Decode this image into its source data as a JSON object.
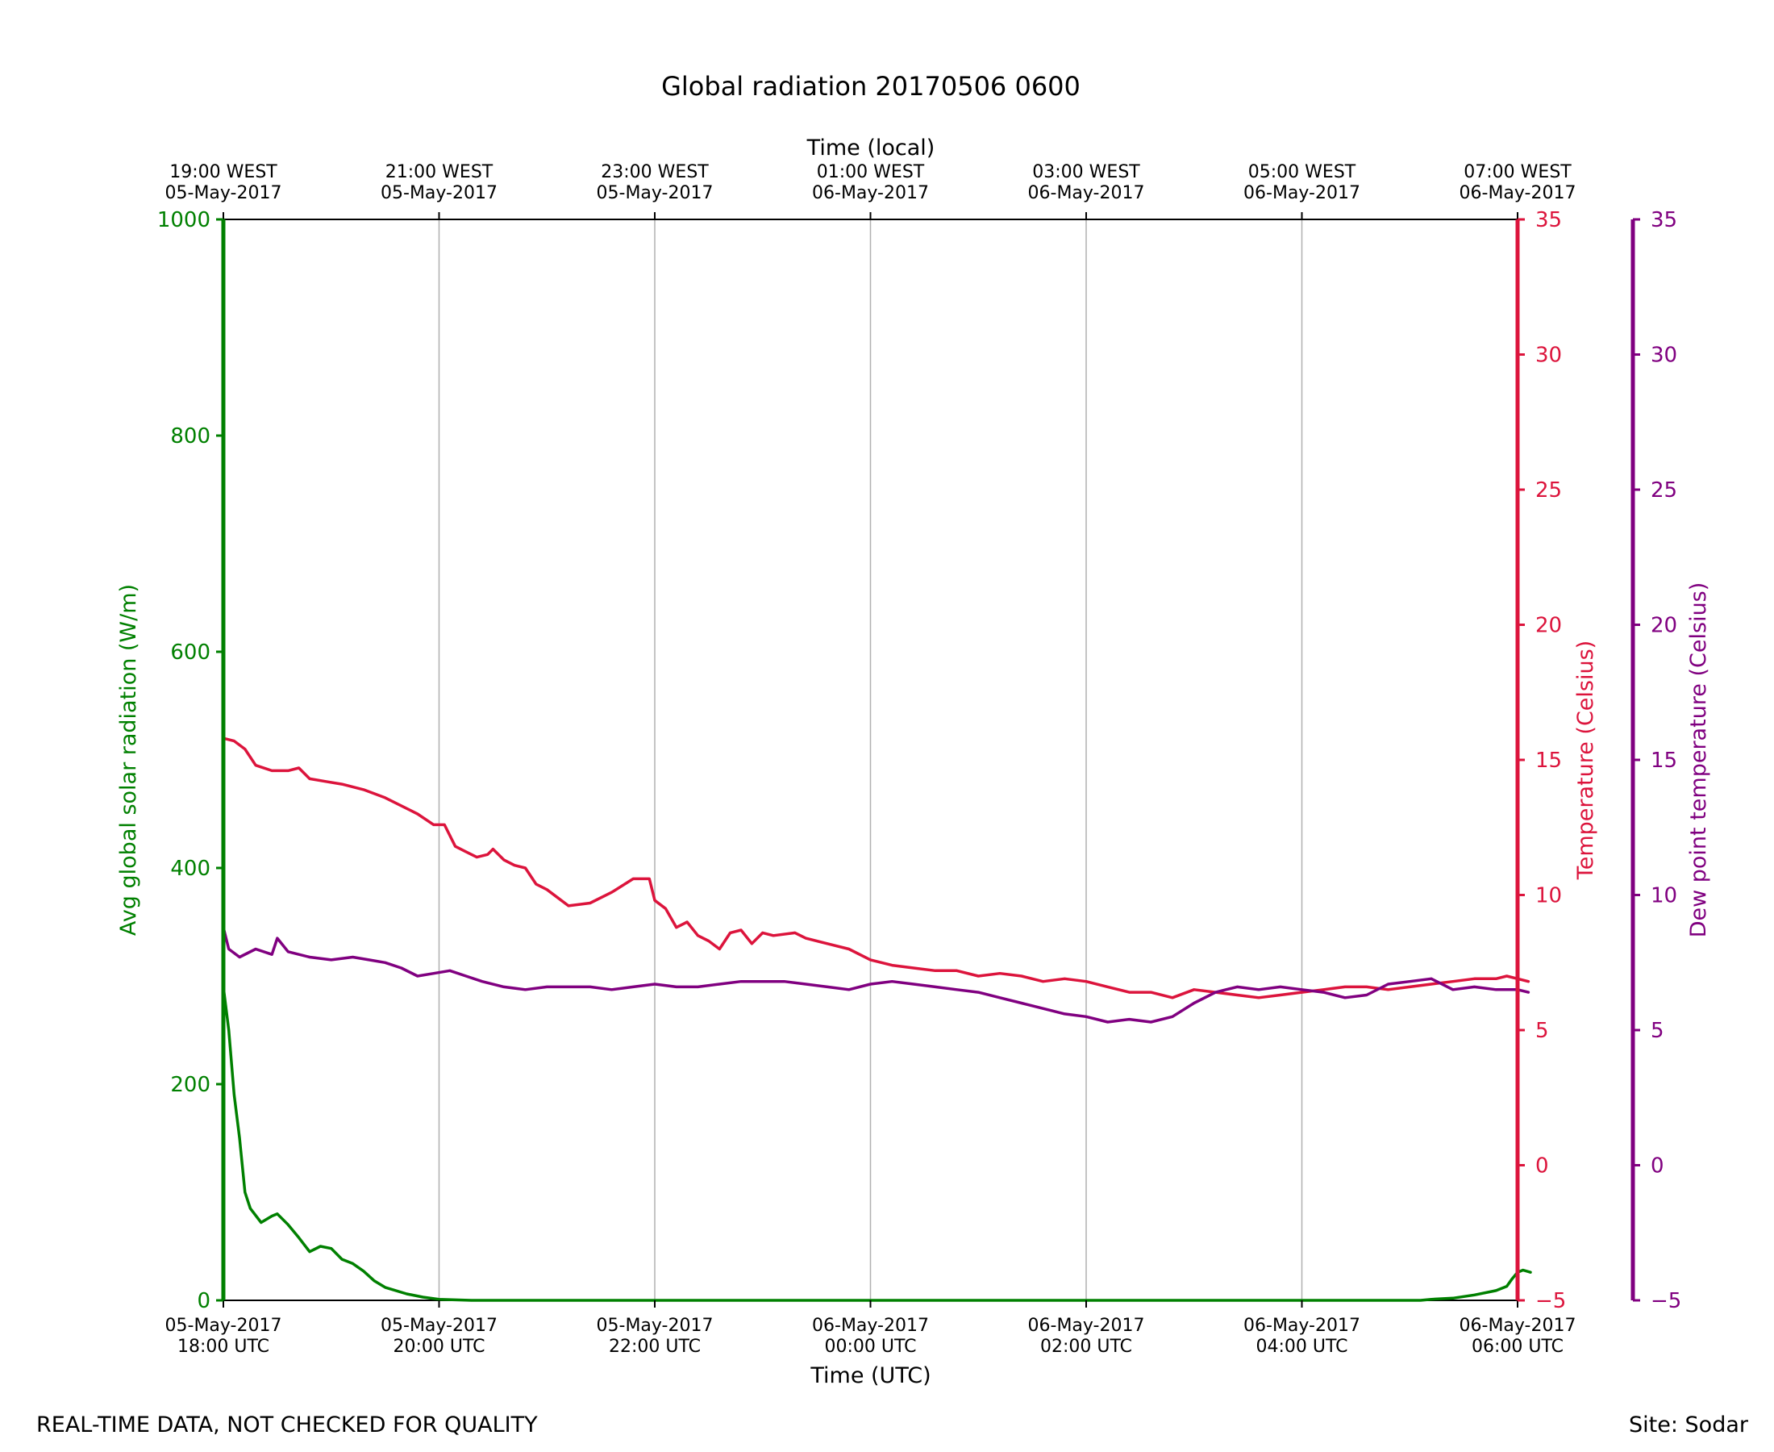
{
  "chart_data": {
    "type": "line",
    "title": "Global radiation 20170506 0600",
    "x_top_label": "Time (local)",
    "x_bottom_label": "Time (UTC)",
    "x_range_hours": [
      0,
      12
    ],
    "x_ticks_hours": [
      0,
      2,
      4,
      6,
      8,
      10,
      12
    ],
    "x_tick_labels_utc": [
      [
        "05-May-2017",
        "18:00 UTC"
      ],
      [
        "05-May-2017",
        "20:00 UTC"
      ],
      [
        "05-May-2017",
        "22:00 UTC"
      ],
      [
        "06-May-2017",
        "00:00 UTC"
      ],
      [
        "06-May-2017",
        "02:00 UTC"
      ],
      [
        "06-May-2017",
        "04:00 UTC"
      ],
      [
        "06-May-2017",
        "06:00 UTC"
      ]
    ],
    "x_tick_labels_local": [
      [
        "19:00 WEST",
        "05-May-2017"
      ],
      [
        "21:00 WEST",
        "05-May-2017"
      ],
      [
        "23:00 WEST",
        "05-May-2017"
      ],
      [
        "01:00 WEST",
        "06-May-2017"
      ],
      [
        "03:00 WEST",
        "06-May-2017"
      ],
      [
        "05:00 WEST",
        "06-May-2017"
      ],
      [
        "07:00 WEST",
        "06-May-2017"
      ]
    ],
    "grid": "vertical",
    "axes": {
      "radiation": {
        "label": "Avg global solar radiation (W/m)",
        "range": [
          0,
          1000
        ],
        "ticks": [
          0,
          200,
          400,
          600,
          800,
          1000
        ],
        "color": "#008000",
        "side": "left"
      },
      "temperature": {
        "label": "Temperature (Celsius)",
        "range": [
          -5,
          35
        ],
        "ticks": [
          -5,
          0,
          5,
          10,
          15,
          20,
          25,
          30,
          35
        ],
        "color": "#dc143c",
        "side": "right"
      },
      "dewpoint": {
        "label": "Dew point temperature (Celsius)",
        "range": [
          -5,
          35
        ],
        "ticks": [
          -5,
          0,
          5,
          10,
          15,
          20,
          25,
          30,
          35
        ],
        "color": "#800080",
        "side": "far-right"
      }
    },
    "series": [
      {
        "name": "Avg global solar radiation",
        "axis": "radiation",
        "color": "#008000",
        "points": [
          [
            0,
            1000
          ],
          [
            0,
            290
          ],
          [
            0.05,
            250
          ],
          [
            0.1,
            190
          ],
          [
            0.15,
            150
          ],
          [
            0.2,
            100
          ],
          [
            0.25,
            85
          ],
          [
            0.35,
            72
          ],
          [
            0.45,
            78
          ],
          [
            0.5,
            80
          ],
          [
            0.6,
            70
          ],
          [
            0.7,
            58
          ],
          [
            0.8,
            45
          ],
          [
            0.9,
            50
          ],
          [
            1.0,
            48
          ],
          [
            1.1,
            38
          ],
          [
            1.2,
            34
          ],
          [
            1.3,
            27
          ],
          [
            1.4,
            18
          ],
          [
            1.5,
            12
          ],
          [
            1.7,
            6
          ],
          [
            1.85,
            3
          ],
          [
            2.0,
            1
          ],
          [
            2.3,
            0
          ],
          [
            11.1,
            0
          ],
          [
            11.2,
            1
          ],
          [
            11.4,
            2
          ],
          [
            11.6,
            5
          ],
          [
            11.8,
            9
          ],
          [
            11.9,
            13
          ],
          [
            11.95,
            20
          ],
          [
            12.0,
            26
          ],
          [
            12.05,
            28
          ],
          [
            12.12,
            26
          ]
        ]
      },
      {
        "name": "Temperature",
        "axis": "temperature",
        "color": "#dc143c",
        "points": [
          [
            0,
            15.8
          ],
          [
            0.1,
            15.7
          ],
          [
            0.2,
            15.4
          ],
          [
            0.3,
            14.8
          ],
          [
            0.45,
            14.6
          ],
          [
            0.6,
            14.6
          ],
          [
            0.7,
            14.7
          ],
          [
            0.8,
            14.3
          ],
          [
            0.95,
            14.2
          ],
          [
            1.1,
            14.1
          ],
          [
            1.3,
            13.9
          ],
          [
            1.5,
            13.6
          ],
          [
            1.65,
            13.3
          ],
          [
            1.8,
            13.0
          ],
          [
            1.95,
            12.6
          ],
          [
            2.05,
            12.6
          ],
          [
            2.15,
            11.8
          ],
          [
            2.25,
            11.6
          ],
          [
            2.35,
            11.4
          ],
          [
            2.45,
            11.5
          ],
          [
            2.5,
            11.7
          ],
          [
            2.6,
            11.3
          ],
          [
            2.7,
            11.1
          ],
          [
            2.8,
            11.0
          ],
          [
            2.9,
            10.4
          ],
          [
            3.0,
            10.2
          ],
          [
            3.1,
            9.9
          ],
          [
            3.2,
            9.6
          ],
          [
            3.4,
            9.7
          ],
          [
            3.6,
            10.1
          ],
          [
            3.8,
            10.6
          ],
          [
            3.95,
            10.6
          ],
          [
            4.0,
            9.8
          ],
          [
            4.1,
            9.5
          ],
          [
            4.2,
            8.8
          ],
          [
            4.3,
            9.0
          ],
          [
            4.4,
            8.5
          ],
          [
            4.5,
            8.3
          ],
          [
            4.6,
            8.0
          ],
          [
            4.7,
            8.6
          ],
          [
            4.8,
            8.7
          ],
          [
            4.9,
            8.2
          ],
          [
            5.0,
            8.6
          ],
          [
            5.1,
            8.5
          ],
          [
            5.3,
            8.6
          ],
          [
            5.4,
            8.4
          ],
          [
            5.6,
            8.2
          ],
          [
            5.8,
            8.0
          ],
          [
            6.0,
            7.6
          ],
          [
            6.2,
            7.4
          ],
          [
            6.4,
            7.3
          ],
          [
            6.6,
            7.2
          ],
          [
            6.8,
            7.2
          ],
          [
            7.0,
            7.0
          ],
          [
            7.2,
            7.1
          ],
          [
            7.4,
            7.0
          ],
          [
            7.6,
            6.8
          ],
          [
            7.8,
            6.9
          ],
          [
            8.0,
            6.8
          ],
          [
            8.2,
            6.6
          ],
          [
            8.4,
            6.4
          ],
          [
            8.6,
            6.4
          ],
          [
            8.8,
            6.2
          ],
          [
            9.0,
            6.5
          ],
          [
            9.2,
            6.4
          ],
          [
            9.4,
            6.3
          ],
          [
            9.6,
            6.2
          ],
          [
            9.8,
            6.3
          ],
          [
            10.0,
            6.4
          ],
          [
            10.2,
            6.5
          ],
          [
            10.4,
            6.6
          ],
          [
            10.6,
            6.6
          ],
          [
            10.8,
            6.5
          ],
          [
            11.0,
            6.6
          ],
          [
            11.2,
            6.7
          ],
          [
            11.4,
            6.8
          ],
          [
            11.6,
            6.9
          ],
          [
            11.8,
            6.9
          ],
          [
            11.9,
            7.0
          ],
          [
            12.0,
            6.9
          ],
          [
            12.1,
            6.8
          ]
        ]
      },
      {
        "name": "Dew point temperature",
        "axis": "dewpoint",
        "color": "#800080",
        "points": [
          [
            0,
            8.8
          ],
          [
            0.05,
            8.0
          ],
          [
            0.15,
            7.7
          ],
          [
            0.3,
            8.0
          ],
          [
            0.45,
            7.8
          ],
          [
            0.5,
            8.4
          ],
          [
            0.6,
            7.9
          ],
          [
            0.8,
            7.7
          ],
          [
            1.0,
            7.6
          ],
          [
            1.2,
            7.7
          ],
          [
            1.35,
            7.6
          ],
          [
            1.5,
            7.5
          ],
          [
            1.65,
            7.3
          ],
          [
            1.8,
            7.0
          ],
          [
            1.95,
            7.1
          ],
          [
            2.1,
            7.2
          ],
          [
            2.25,
            7.0
          ],
          [
            2.4,
            6.8
          ],
          [
            2.6,
            6.6
          ],
          [
            2.8,
            6.5
          ],
          [
            3.0,
            6.6
          ],
          [
            3.2,
            6.6
          ],
          [
            3.4,
            6.6
          ],
          [
            3.6,
            6.5
          ],
          [
            3.8,
            6.6
          ],
          [
            4.0,
            6.7
          ],
          [
            4.2,
            6.6
          ],
          [
            4.4,
            6.6
          ],
          [
            4.6,
            6.7
          ],
          [
            4.8,
            6.8
          ],
          [
            5.0,
            6.8
          ],
          [
            5.2,
            6.8
          ],
          [
            5.4,
            6.7
          ],
          [
            5.6,
            6.6
          ],
          [
            5.8,
            6.5
          ],
          [
            6.0,
            6.7
          ],
          [
            6.2,
            6.8
          ],
          [
            6.4,
            6.7
          ],
          [
            6.6,
            6.6
          ],
          [
            6.8,
            6.5
          ],
          [
            7.0,
            6.4
          ],
          [
            7.2,
            6.2
          ],
          [
            7.4,
            6.0
          ],
          [
            7.6,
            5.8
          ],
          [
            7.8,
            5.6
          ],
          [
            8.0,
            5.5
          ],
          [
            8.2,
            5.3
          ],
          [
            8.4,
            5.4
          ],
          [
            8.6,
            5.3
          ],
          [
            8.8,
            5.5
          ],
          [
            9.0,
            6.0
          ],
          [
            9.2,
            6.4
          ],
          [
            9.4,
            6.6
          ],
          [
            9.6,
            6.5
          ],
          [
            9.8,
            6.6
          ],
          [
            10.0,
            6.5
          ],
          [
            10.2,
            6.4
          ],
          [
            10.4,
            6.2
          ],
          [
            10.6,
            6.3
          ],
          [
            10.8,
            6.7
          ],
          [
            11.0,
            6.8
          ],
          [
            11.2,
            6.9
          ],
          [
            11.4,
            6.5
          ],
          [
            11.6,
            6.6
          ],
          [
            11.8,
            6.5
          ],
          [
            12.0,
            6.5
          ],
          [
            12.1,
            6.4
          ]
        ]
      }
    ]
  },
  "footer": {
    "disclaimer": "REAL-TIME DATA, NOT CHECKED FOR QUALITY",
    "site": "Site: Sodar"
  }
}
